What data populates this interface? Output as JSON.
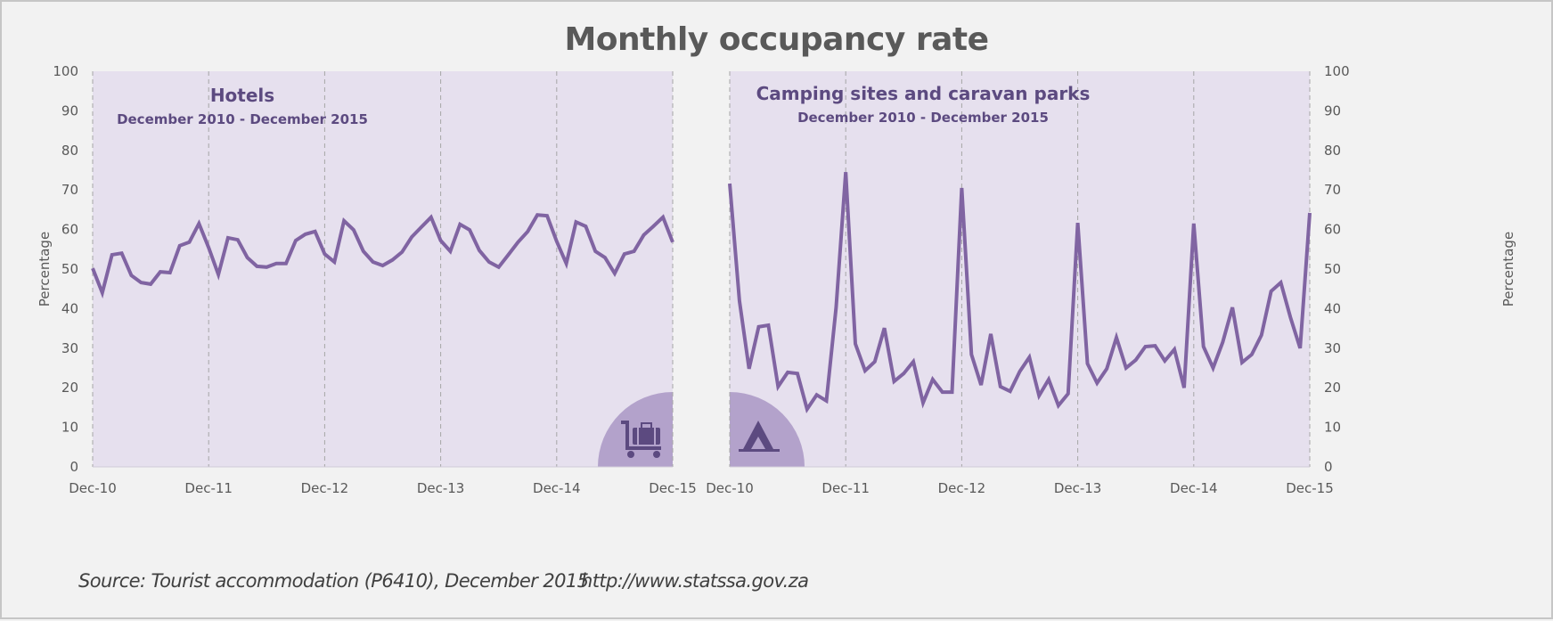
{
  "page": {
    "title": "Monthly occupancy rate",
    "footer_source": "Source: Tourist accommodation (P6410), December 2015",
    "footer_url": "http://www.statssa.gov.za"
  },
  "colors": {
    "line": "#8064a2",
    "plot_bg": "#e6e0ee",
    "badge": "#b3a2cb",
    "icon": "#5c4a80",
    "title_text": "#595959",
    "panel_title": "#5c4a80"
  },
  "chart_data": [
    {
      "type": "line",
      "title": "Hotels",
      "subtitle": "December 2010 - December 2015",
      "xlabel": "",
      "ylabel": "Percentage",
      "y_axis_side": "left",
      "ylim": [
        0,
        100
      ],
      "yticks": [
        0,
        10,
        20,
        30,
        40,
        50,
        60,
        70,
        80,
        90,
        100
      ],
      "xtick_labels": [
        "Dec-10",
        "Dec-11",
        "Dec-12",
        "Dec-13",
        "Dec-14",
        "Dec-15"
      ],
      "grid": "vertical dashed at each December",
      "icon": "luggage-cart-icon",
      "icon_position": "bottom-right",
      "series": [
        {
          "name": "Hotels occupancy rate",
          "x_start": "Dec-10",
          "frequency": "monthly",
          "values": [
            50.2,
            44.0,
            53.6,
            54.0,
            48.4,
            46.6,
            46.2,
            49.3,
            49.1,
            55.9,
            56.8,
            61.5,
            55.4,
            48.6,
            57.9,
            57.4,
            52.9,
            50.7,
            50.5,
            51.4,
            51.4,
            57.2,
            58.8,
            59.5,
            53.8,
            51.8,
            62.2,
            59.9,
            54.5,
            51.8,
            50.9,
            52.3,
            54.3,
            58.1,
            60.6,
            63.1,
            57.2,
            54.5,
            61.3,
            59.9,
            54.7,
            51.8,
            50.5,
            53.6,
            56.8,
            59.5,
            63.7,
            63.5,
            57.0,
            51.4,
            61.9,
            60.8,
            54.5,
            52.9,
            48.9,
            53.8,
            54.5,
            58.6,
            60.8,
            63.1,
            56.8
          ]
        }
      ]
    },
    {
      "type": "line",
      "title": "Camping sites and caravan parks",
      "subtitle": "December 2010 - December 2015",
      "xlabel": "",
      "ylabel": "Percentage",
      "y_axis_side": "right",
      "ylim": [
        0,
        100
      ],
      "yticks": [
        0,
        10,
        20,
        30,
        40,
        50,
        60,
        70,
        80,
        90,
        100
      ],
      "xtick_labels": [
        "Dec-10",
        "Dec-11",
        "Dec-12",
        "Dec-13",
        "Dec-14",
        "Dec-15"
      ],
      "grid": "vertical dashed at each December",
      "icon": "tent-icon",
      "icon_position": "bottom-left",
      "series": [
        {
          "name": "Camping sites and caravan parks occupancy rate",
          "x_start": "Dec-10",
          "frequency": "monthly",
          "values": [
            71.6,
            42.0,
            24.8,
            35.4,
            35.8,
            20.3,
            23.9,
            23.6,
            14.6,
            18.2,
            16.7,
            40.3,
            74.5,
            31.1,
            24.3,
            26.6,
            35.1,
            21.6,
            23.6,
            26.6,
            16.2,
            22.1,
            18.9,
            18.9,
            70.5,
            28.4,
            20.7,
            33.6,
            20.3,
            19.1,
            24.1,
            27.7,
            18.0,
            22.1,
            15.5,
            18.5,
            61.7,
            26.1,
            21.2,
            24.8,
            32.7,
            25.0,
            27.0,
            30.4,
            30.6,
            26.8,
            29.7,
            20.0,
            61.5,
            30.4,
            25.0,
            31.5,
            40.3,
            26.4,
            28.4,
            33.3,
            44.4,
            46.6,
            37.8,
            30.0,
            64.2
          ]
        }
      ]
    }
  ]
}
